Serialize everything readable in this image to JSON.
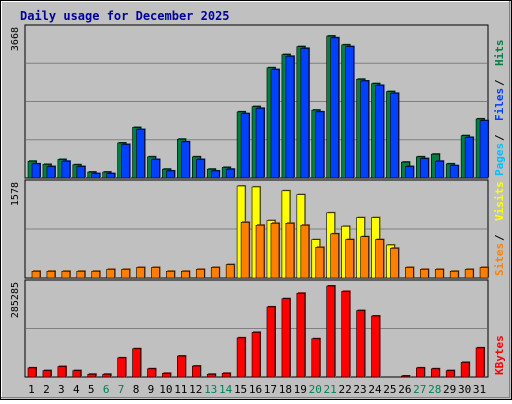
{
  "title": "Daily usage for December 2025",
  "chart_data": [
    {
      "type": "bar",
      "panel": "pages-files-hits",
      "categories": [
        "1",
        "2",
        "3",
        "4",
        "5",
        "6",
        "7",
        "8",
        "9",
        "10",
        "11",
        "12",
        "13",
        "14",
        "15",
        "16",
        "17",
        "18",
        "19",
        "20",
        "21",
        "22",
        "23",
        "24",
        "25",
        "26",
        "27",
        "28",
        "29",
        "30",
        "31"
      ],
      "weekend_days": [
        "6",
        "7",
        "13",
        "14",
        "20",
        "21",
        "27",
        "28"
      ],
      "ymax_label": "3668",
      "ylim": [
        0,
        3668
      ],
      "series": [
        {
          "name": "Hits",
          "color": "#008040",
          "values": [
            418,
            339,
            462,
            330,
            148,
            148,
            874,
            1260,
            528,
            220,
            968,
            528,
            220,
            264,
            1650,
            1782,
            2750,
            3080,
            3278,
            1694,
            3542,
            3322,
            2464,
            2354,
            2156,
            396,
            528,
            594,
            352,
            1056,
            1474
          ]
        },
        {
          "name": "Files",
          "color": "#0040ff",
          "values": [
            352,
            286,
            418,
            286,
            110,
            110,
            836,
            1210,
            462,
            176,
            902,
            462,
            176,
            220,
            1606,
            1738,
            2706,
            3036,
            3234,
            1650,
            3498,
            3278,
            2420,
            2310,
            2112,
            286,
            484,
            418,
            308,
            1012,
            1430
          ]
        },
        {
          "name": "Pages",
          "color": "#00c0ff",
          "values": [
            0,
            0,
            0,
            0,
            0,
            0,
            0,
            0,
            0,
            0,
            0,
            0,
            0,
            0,
            0,
            0,
            0,
            0,
            0,
            0,
            0,
            0,
            0,
            0,
            0,
            0,
            0,
            0,
            0,
            0,
            0
          ]
        }
      ],
      "legend": [
        "Pages",
        "Files",
        "Hits"
      ]
    },
    {
      "type": "bar",
      "panel": "sites-visits",
      "categories": [
        "1",
        "2",
        "3",
        "4",
        "5",
        "6",
        "7",
        "8",
        "9",
        "10",
        "11",
        "12",
        "13",
        "14",
        "15",
        "16",
        "17",
        "18",
        "19",
        "20",
        "21",
        "22",
        "23",
        "24",
        "25",
        "26",
        "27",
        "28",
        "29",
        "30",
        "31"
      ],
      "ymax_label": "1578",
      "ylim": [
        0,
        1578
      ],
      "series": [
        {
          "name": "Visits",
          "color": "#ffff00",
          "values": [
            0,
            0,
            0,
            0,
            0,
            0,
            0,
            0,
            0,
            0,
            0,
            0,
            0,
            0,
            1578,
            1562,
            987,
            1496,
            1430,
            658,
            1118,
            888,
            1036,
            1036,
            566,
            0,
            0,
            0,
            0,
            0,
            0
          ]
        },
        {
          "name": "Sites",
          "color": "#ff8000",
          "values": [
            115,
            115,
            115,
            115,
            115,
            148,
            148,
            181,
            181,
            115,
            115,
            148,
            181,
            230,
            954,
            905,
            938,
            938,
            905,
            526,
            757,
            658,
            708,
            658,
            510,
            181,
            148,
            148,
            115,
            148,
            181
          ]
        }
      ],
      "legend": [
        "Sites",
        "Visits"
      ]
    },
    {
      "type": "bar",
      "panel": "kbytes",
      "categories": [
        "1",
        "2",
        "3",
        "4",
        "5",
        "6",
        "7",
        "8",
        "9",
        "10",
        "11",
        "12",
        "13",
        "14",
        "15",
        "16",
        "17",
        "18",
        "19",
        "20",
        "21",
        "22",
        "23",
        "24",
        "25",
        "26",
        "27",
        "28",
        "29",
        "30",
        "31"
      ],
      "ymax_label": "285285",
      "ylim": [
        0,
        285285
      ],
      "series": [
        {
          "name": "KBytes",
          "color": "#ff0000",
          "values": [
            28528,
            19971,
            32809,
            19971,
            8559,
            8559,
            59910,
            88438,
            25675,
            11411,
            65616,
            34236,
            8559,
            11411,
            122673,
            139790,
            219669,
            245345,
            262462,
            119820,
            285285,
            268168,
            208258,
            191141,
            0,
            2853,
            28528,
            25675,
            19971,
            45645,
            91291
          ]
        }
      ],
      "legend": [
        "KBytes"
      ]
    }
  ]
}
